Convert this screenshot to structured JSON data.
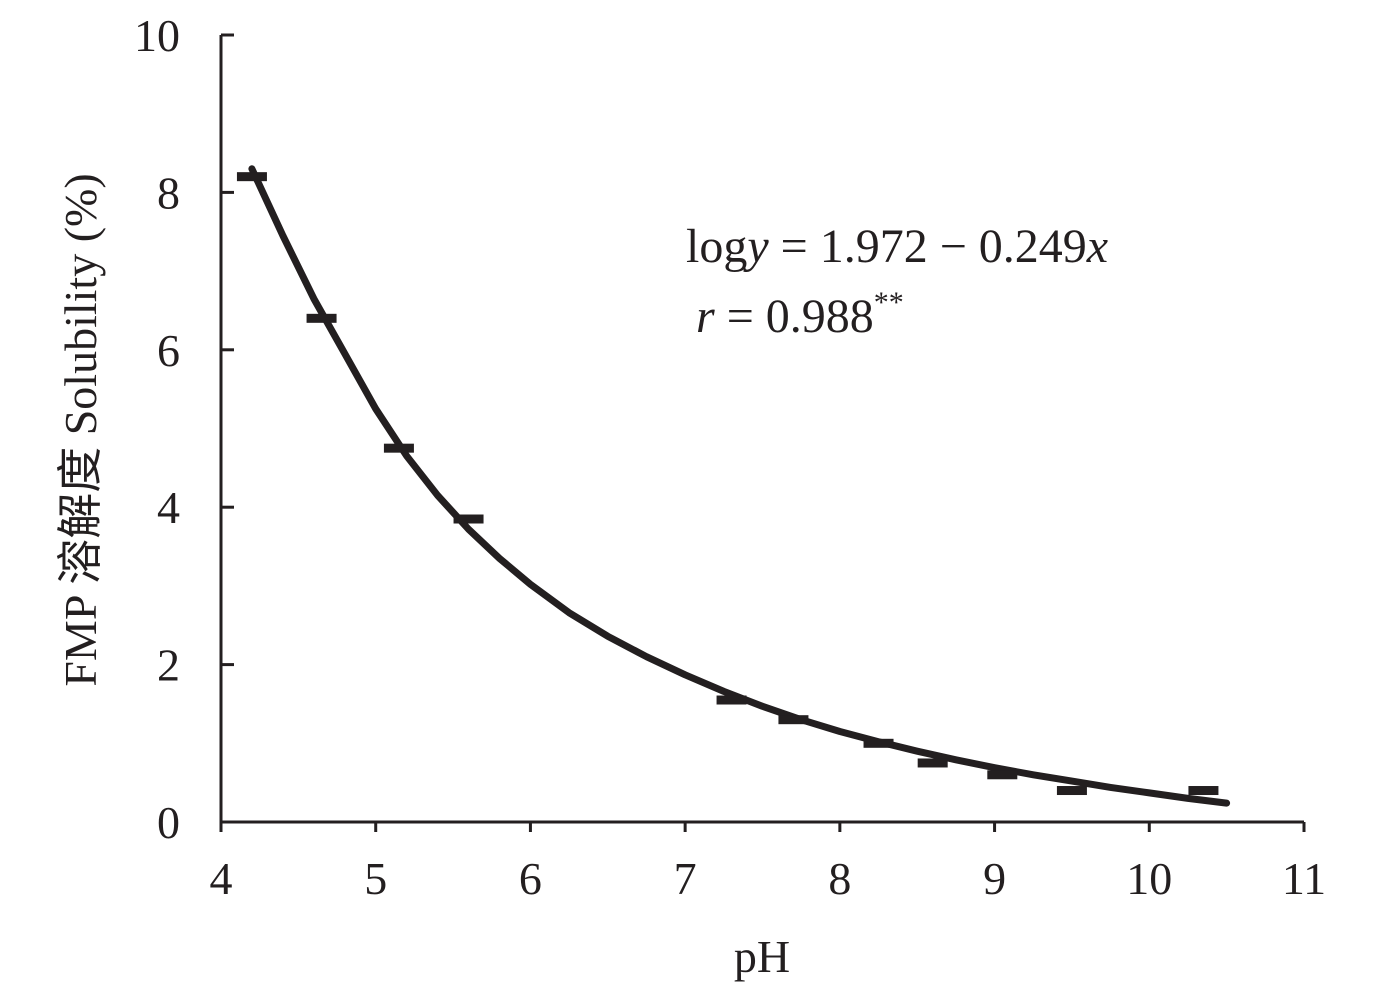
{
  "chart_data": {
    "type": "scatter",
    "title": "",
    "xlabel": "pH",
    "ylabel": "FMP 溶解度 Solubility (%)",
    "xlim": [
      4,
      11
    ],
    "ylim": [
      0,
      10
    ],
    "x_ticks": [
      "4",
      "5",
      "6",
      "7",
      "8",
      "9",
      "10",
      "11"
    ],
    "y_ticks": [
      "0",
      "2",
      "4",
      "6",
      "8",
      "10"
    ],
    "grid": false,
    "legend": "none",
    "series": [
      {
        "kind": "points",
        "points": [
          {
            "x": 4.2,
            "y": 8.2
          },
          {
            "x": 4.65,
            "y": 6.4
          },
          {
            "x": 5.15,
            "y": 4.75
          },
          {
            "x": 5.6,
            "y": 3.85
          },
          {
            "x": 7.3,
            "y": 1.55
          },
          {
            "x": 7.7,
            "y": 1.3
          },
          {
            "x": 8.25,
            "y": 1.0
          },
          {
            "x": 8.6,
            "y": 0.75
          },
          {
            "x": 9.05,
            "y": 0.6
          },
          {
            "x": 9.5,
            "y": 0.4
          },
          {
            "x": 10.35,
            "y": 0.4
          }
        ]
      },
      {
        "kind": "fit",
        "x": [
          4.2,
          4.4,
          4.6,
          4.8,
          5.0,
          5.2,
          5.4,
          5.6,
          5.8,
          6.0,
          6.25,
          6.5,
          6.75,
          7.0,
          7.25,
          7.5,
          7.75,
          8.0,
          8.25,
          8.5,
          8.75,
          9.0,
          9.25,
          9.5,
          9.75,
          10.0,
          10.25,
          10.5
        ],
        "y": [
          8.3,
          7.45,
          6.65,
          5.95,
          5.25,
          4.65,
          4.15,
          3.72,
          3.35,
          3.02,
          2.66,
          2.36,
          2.1,
          1.87,
          1.66,
          1.47,
          1.3,
          1.15,
          1.02,
          0.9,
          0.79,
          0.69,
          0.6,
          0.52,
          0.44,
          0.37,
          0.3,
          0.24
        ]
      }
    ],
    "annotations": {
      "equation_prefix": "log",
      "equation_var_y": "y",
      "equation_rest": " = 1.972 − 0.249",
      "equation_var_x": "x",
      "r_var": "r",
      "r_rest": " = 0.988",
      "r_sup": "**"
    },
    "colors": {
      "ink": "#231f20"
    }
  }
}
